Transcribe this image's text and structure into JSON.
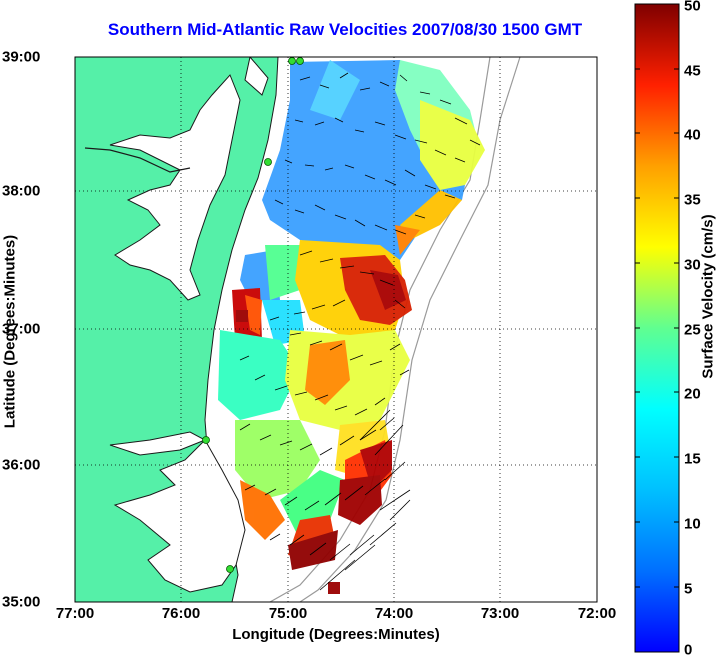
{
  "title": "Southern Mid-Atlantic Raw Velocities 2007/08/30 1500 GMT",
  "axes": {
    "xlabel": "Longitude (Degrees:Minutes)",
    "ylabel": "Latitude (Degrees:Minutes)",
    "xticks": [
      "77:00",
      "76:00",
      "75:00",
      "74:00",
      "73:00",
      "72:00"
    ],
    "yticks": [
      "39:00",
      "38:00",
      "37:00",
      "36:00",
      "35:00"
    ]
  },
  "colorbar": {
    "label": "Surface Velocity (cm/s)",
    "ticks": [
      "50",
      "45",
      "40",
      "35",
      "30",
      "25",
      "20",
      "15",
      "10",
      "5",
      "0"
    ],
    "min": 0,
    "max": 50
  },
  "colors": {
    "land": "#55f0a8",
    "title": "#0000ff",
    "vector": "#000000"
  }
}
